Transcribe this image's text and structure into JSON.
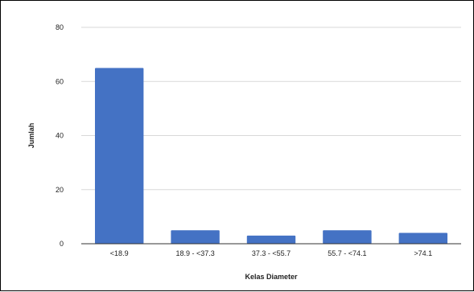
{
  "chart_data": {
    "type": "bar",
    "title": "",
    "xlabel": "Kelas Diameter",
    "ylabel": "Jumlah",
    "categories": [
      "<18.9",
      "18.9 - <37.3",
      "37.3 - <55.7",
      "55.7 - <74.1",
      ">74.1"
    ],
    "values": [
      65,
      5,
      3,
      5,
      4
    ],
    "ylim": [
      0,
      80
    ],
    "yticks": [
      "0",
      "20",
      "40",
      "60",
      "80"
    ],
    "grid": true,
    "legend": "none",
    "bar_color": "#4472c4",
    "grid_color": "#d9d9d9",
    "axis_color": "#333333"
  }
}
